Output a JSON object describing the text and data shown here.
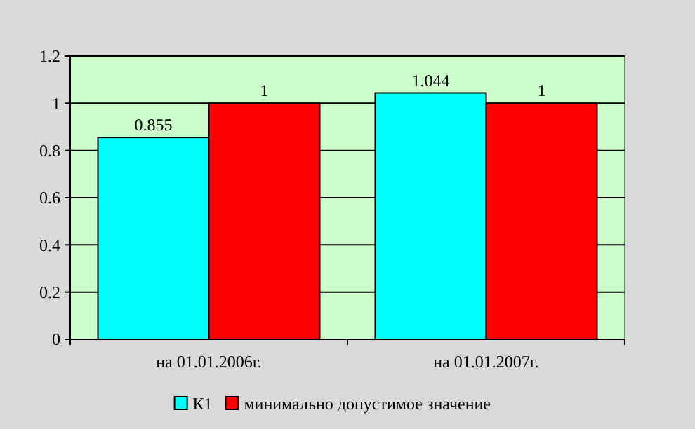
{
  "chart_data": {
    "type": "bar",
    "categories": [
      "на 01.01.2006г.",
      "на 01.01.2007г."
    ],
    "series": [
      {
        "name": "К1",
        "color": "#00ffff",
        "values": [
          0.855,
          1.044
        ]
      },
      {
        "name": "минимально допустимое значение",
        "color": "#ff0000",
        "values": [
          1,
          1
        ]
      }
    ],
    "ylim": [
      0,
      1.2
    ],
    "yticks": [
      0,
      0.2,
      0.4,
      0.6,
      0.8,
      1,
      1.2
    ],
    "grid": "y",
    "legend": "bottom",
    "data_labels": true
  }
}
